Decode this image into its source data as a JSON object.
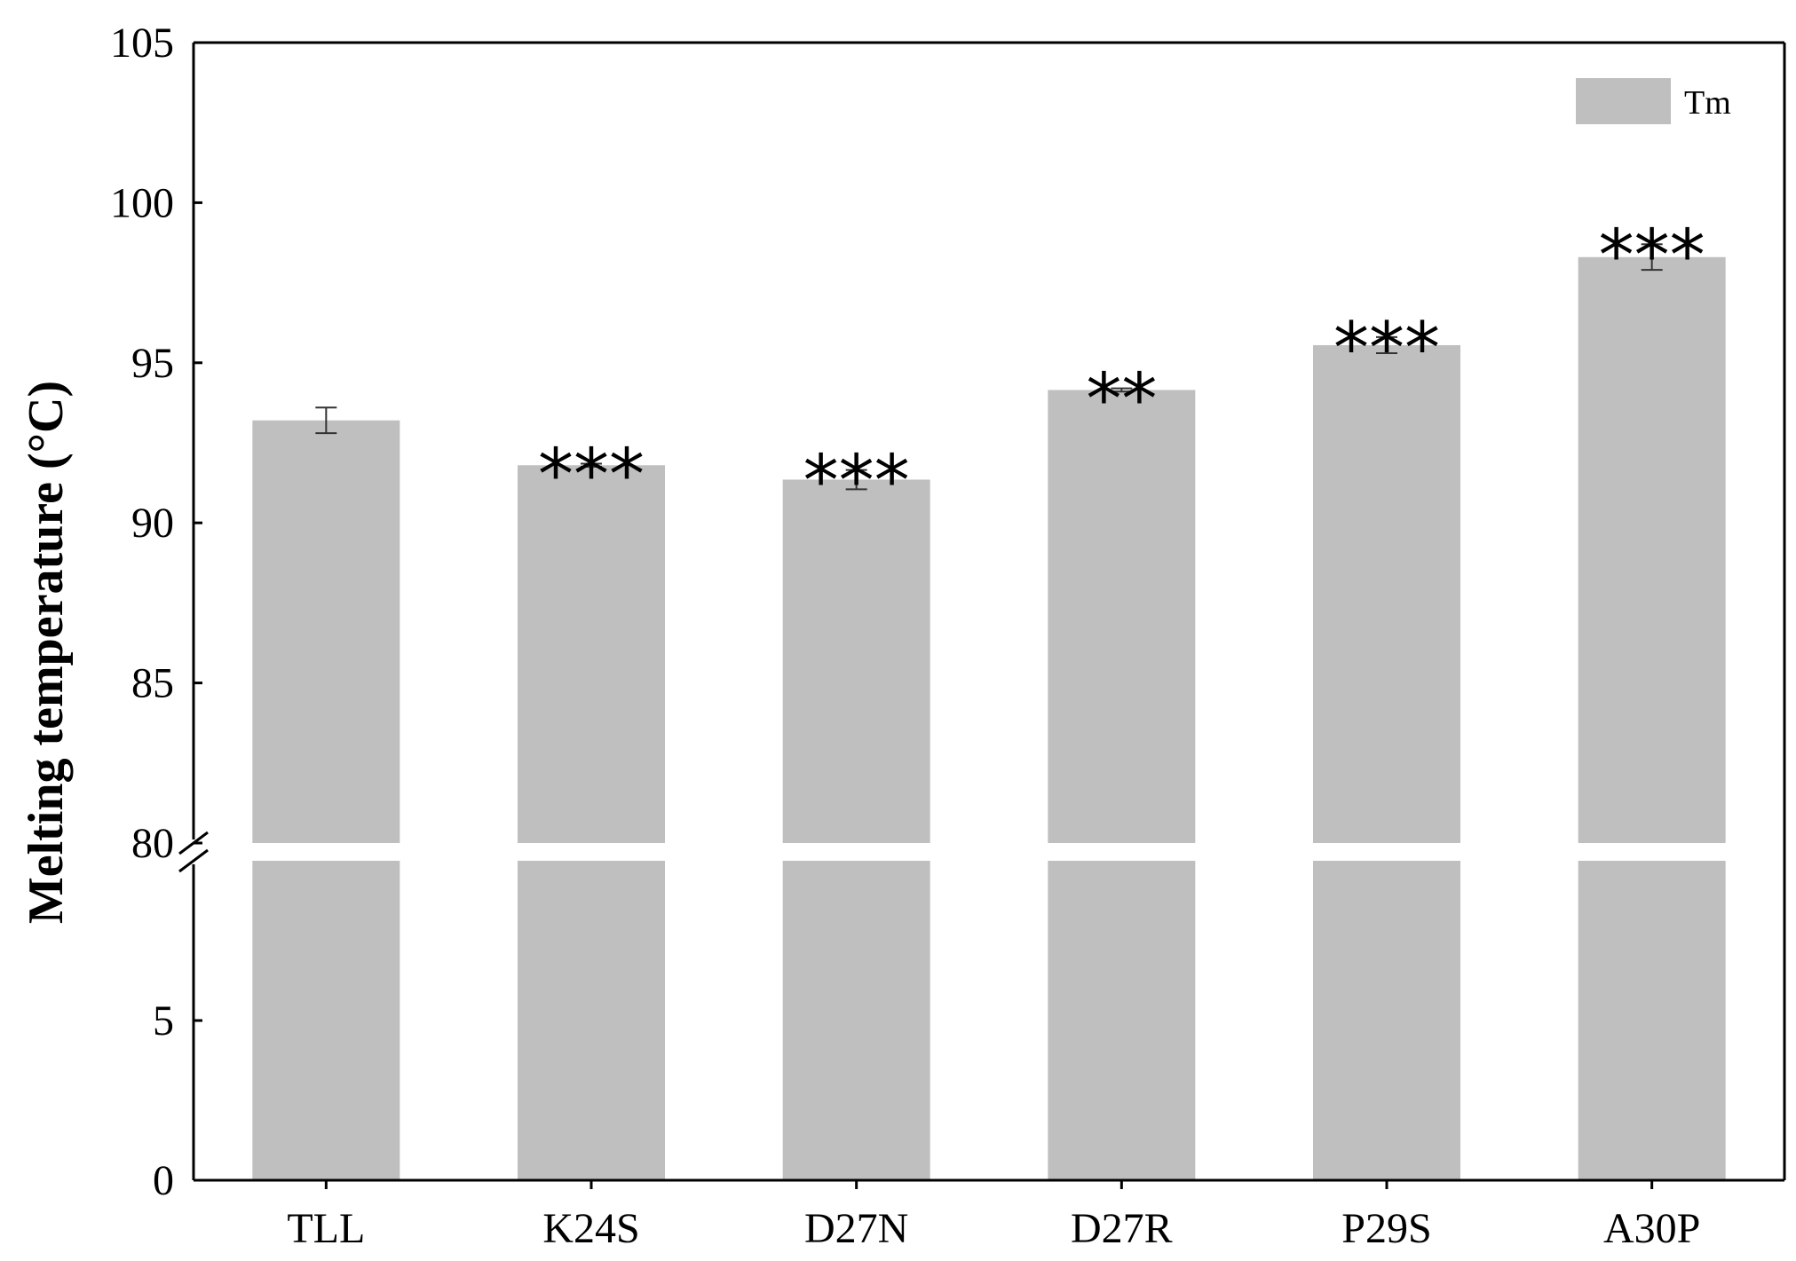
{
  "chart_data": {
    "type": "bar",
    "ylabel": "Melting temperature (°C)",
    "xlabel": "",
    "categories": [
      "TLL",
      "K24S",
      "D27N",
      "D27R",
      "P29S",
      "A30P"
    ],
    "series": [
      {
        "name": "Tm",
        "values": [
          93.2,
          91.8,
          91.35,
          94.15,
          95.55,
          98.3
        ],
        "errors": [
          0.4,
          0.05,
          0.3,
          0.05,
          0.25,
          0.4
        ],
        "significance": [
          "",
          "***",
          "***",
          "**",
          "***",
          "***"
        ]
      }
    ],
    "axis_break": {
      "lower_range": [
        0,
        10
      ],
      "upper_range": [
        80,
        105
      ]
    },
    "lower_ticks": [
      "0",
      "5"
    ],
    "upper_ticks": [
      "80",
      "85",
      "90",
      "95",
      "100",
      "105"
    ],
    "legend_position": "top-right",
    "bar_color": "#bfbfbf",
    "grid": false
  }
}
